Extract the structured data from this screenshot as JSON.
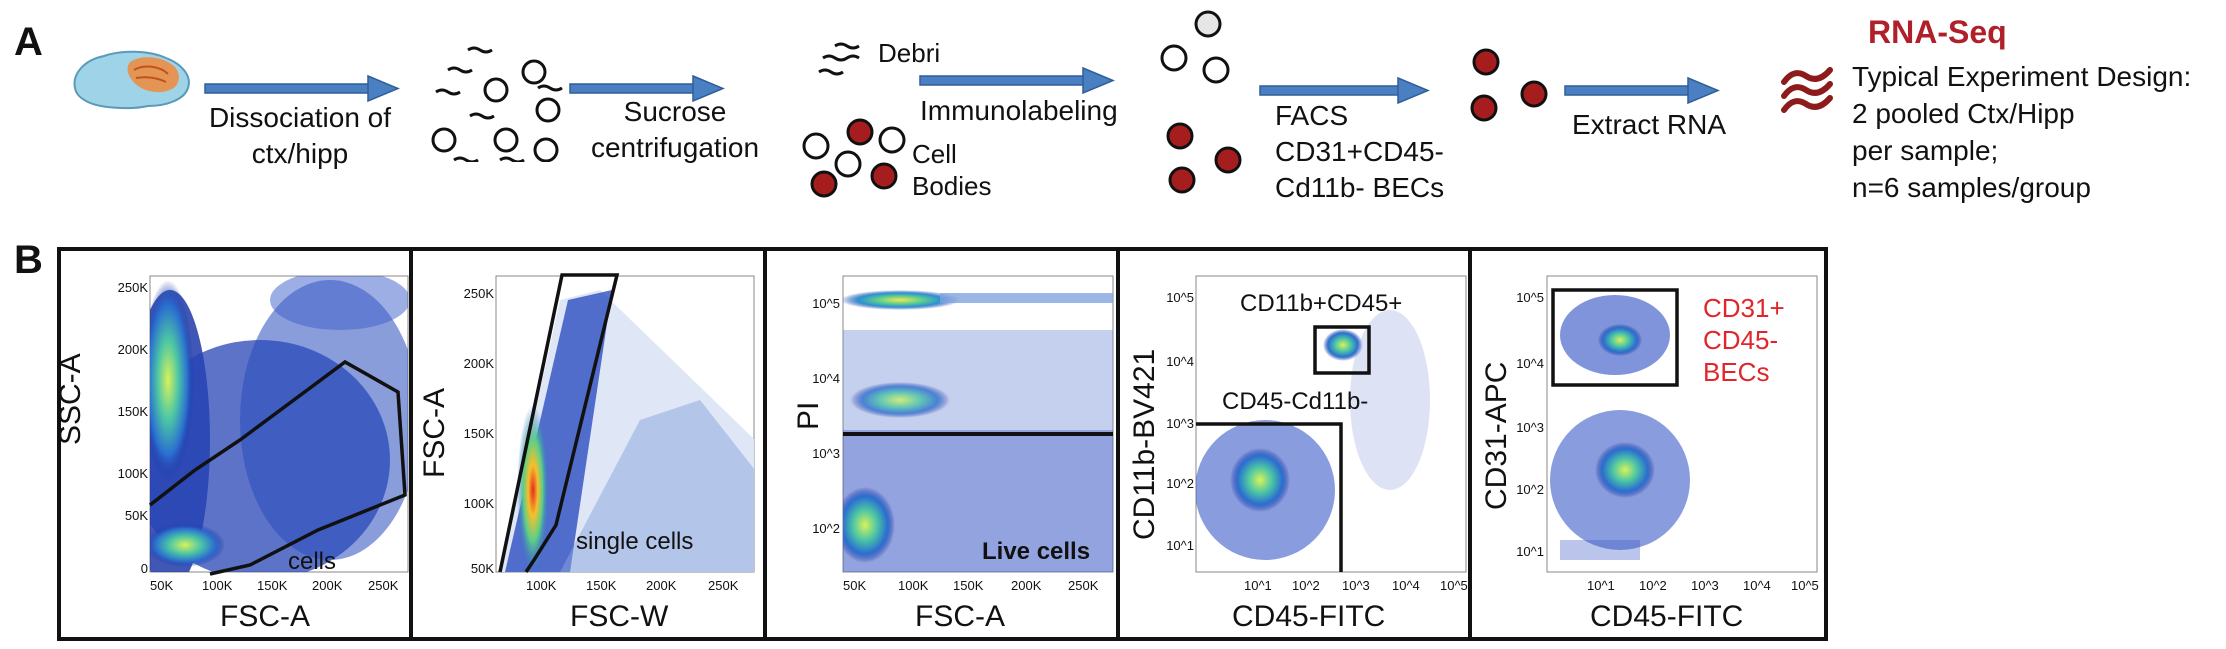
{
  "panel_a": {
    "letter": "A",
    "steps": {
      "dissociation": "Dissociation of\nctx/hipp",
      "sucrose": "Sucrose\ncentrifugation",
      "debri": "Debri",
      "cell_bodies": "Cell\nBodies",
      "immunolabeling": "Immunolabeling",
      "facs": "FACS\nCD31+CD45-\nCd11b- BECs",
      "extract": "Extract RNA"
    },
    "rna_seq": {
      "title": "RNA-Seq",
      "design": "Typical Experiment Design:\n2 pooled Ctx/Hipp\nper sample;\nn=6 samples/group"
    }
  },
  "panel_b": {
    "letter": "B",
    "plots": [
      {
        "id": "scatter",
        "xlabel": "FSC-A",
        "ylabel": "SSC-A",
        "xticks": [
          "50K",
          "100K",
          "150K",
          "200K",
          "250K"
        ],
        "yticks": [
          "0",
          "50K",
          "100K",
          "150K",
          "200K",
          "250K"
        ],
        "gate_label": "cells"
      },
      {
        "id": "singlets",
        "xlabel": "FSC-W",
        "ylabel": "FSC-A",
        "xticks": [
          "100K",
          "150K",
          "200K",
          "250K"
        ],
        "yticks": [
          "50K",
          "100K",
          "150K",
          "200K",
          "250K"
        ],
        "gate_label": "single cells"
      },
      {
        "id": "live",
        "xlabel": "FSC-A",
        "ylabel": "PI",
        "xticks": [
          "50K",
          "100K",
          "150K",
          "200K",
          "250K"
        ],
        "yticks": [
          "10^2",
          "10^3",
          "10^4",
          "10^5"
        ],
        "gate_label": "Live cells"
      },
      {
        "id": "cd11b",
        "xlabel": "CD45-FITC",
        "ylabel": "CD11b-BV421",
        "xticks": [
          "10^1",
          "10^2",
          "10^3",
          "10^4",
          "10^5"
        ],
        "yticks": [
          "10^1",
          "10^2",
          "10^3",
          "10^4",
          "10^5"
        ],
        "gate_label_1": "CD11b+CD45+",
        "gate_label_2": "CD45-Cd11b-"
      },
      {
        "id": "cd31",
        "xlabel": "CD45-FITC",
        "ylabel": "CD31-APC",
        "xticks": [
          "10^1",
          "10^2",
          "10^3",
          "10^4",
          "10^5"
        ],
        "yticks": [
          "10^1",
          "10^2",
          "10^3",
          "10^4",
          "10^5"
        ],
        "gate_label": "CD31+\nCD45-\nBECs",
        "gate_color": "#e0262a"
      }
    ]
  },
  "colors": {
    "arrow": "#4a7fc1",
    "dark_red": "#a51d1d",
    "brain": "#9fd3e8",
    "brain_orange": "#f08a3c",
    "rna_red": "#b0202a"
  }
}
